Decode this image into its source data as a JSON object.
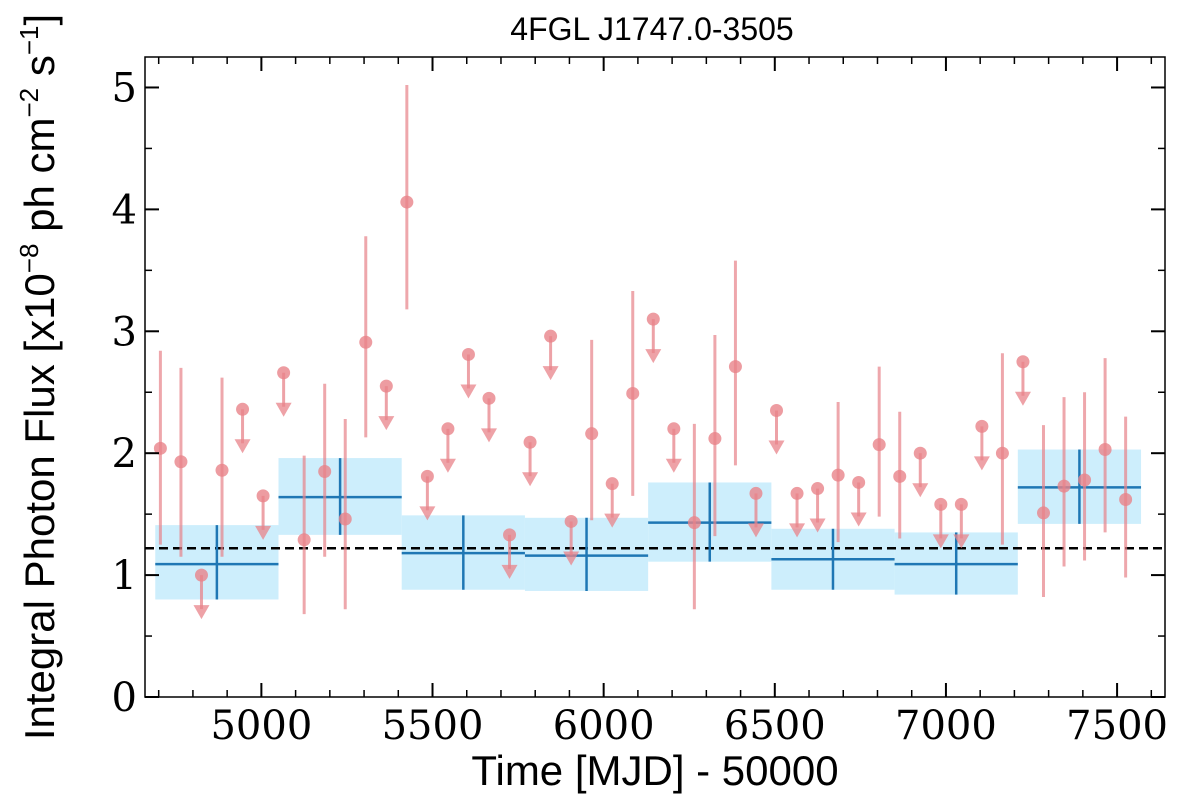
{
  "chart_data": {
    "type": "scatter",
    "title": "4FGL J1747.0-3505",
    "xlabel": "Time [MJD] - 50000",
    "ylabel": {
      "prefix": "Integral Photon Flux [x10",
      "exp1": "−8",
      "mid": " ph cm",
      "exp2": "−2",
      "mid2": " s",
      "exp3": "−1",
      "suffix": "]"
    },
    "xlim": [
      4660,
      7640
    ],
    "ylim": [
      0,
      5.25
    ],
    "x_ticks": [
      5000,
      5500,
      6000,
      6500,
      7000,
      7500
    ],
    "x_tick_labels": [
      "5000",
      "5500",
      "6000",
      "6500",
      "7000",
      "7500"
    ],
    "y_ticks": [
      0,
      1,
      2,
      3,
      4,
      5
    ],
    "y_tick_labels": [
      "0",
      "1",
      "2",
      "3",
      "4",
      "5"
    ],
    "mean_flux": 1.22,
    "colors": {
      "detection": "#e8838a",
      "bin_fill": "#cdeefc",
      "bin_line": "#1f77b4",
      "mean_line": "#000000"
    },
    "binned_series": [
      {
        "x_start": 4690,
        "x_end": 5050,
        "x_center": 4870,
        "y": 1.09,
        "y_lo": 0.8,
        "y_hi": 1.41
      },
      {
        "x_start": 5050,
        "x_end": 5410,
        "x_center": 5230,
        "y": 1.64,
        "y_lo": 1.33,
        "y_hi": 1.96
      },
      {
        "x_start": 5410,
        "x_end": 5770,
        "x_center": 5590,
        "y": 1.18,
        "y_lo": 0.88,
        "y_hi": 1.49
      },
      {
        "x_start": 5770,
        "x_end": 6130,
        "x_center": 5950,
        "y": 1.16,
        "y_lo": 0.87,
        "y_hi": 1.47
      },
      {
        "x_start": 6130,
        "x_end": 6490,
        "x_center": 6310,
        "y": 1.43,
        "y_lo": 1.11,
        "y_hi": 1.76
      },
      {
        "x_start": 6490,
        "x_end": 6850,
        "x_center": 6670,
        "y": 1.13,
        "y_lo": 0.88,
        "y_hi": 1.38
      },
      {
        "x_start": 6850,
        "x_end": 7210,
        "x_center": 7030,
        "y": 1.09,
        "y_lo": 0.84,
        "y_hi": 1.35
      },
      {
        "x_start": 7210,
        "x_end": 7570,
        "x_center": 7390,
        "y": 1.72,
        "y_lo": 1.42,
        "y_hi": 2.03
      }
    ],
    "detections": [
      {
        "x": 4705,
        "y": 2.04,
        "y_lo": 1.25,
        "y_hi": 2.84
      },
      {
        "x": 4765,
        "y": 1.93,
        "y_lo": 1.15,
        "y_hi": 2.7
      },
      {
        "x": 4885,
        "y": 1.86,
        "y_lo": 1.15,
        "y_hi": 2.62
      },
      {
        "x": 5125,
        "y": 1.29,
        "y_lo": 0.68,
        "y_hi": 1.98
      },
      {
        "x": 5185,
        "y": 1.85,
        "y_lo": 1.15,
        "y_hi": 2.57
      },
      {
        "x": 5245,
        "y": 1.46,
        "y_lo": 0.72,
        "y_hi": 2.28
      },
      {
        "x": 5305,
        "y": 2.91,
        "y_lo": 2.13,
        "y_hi": 3.78
      },
      {
        "x": 5425,
        "y": 4.06,
        "y_lo": 3.18,
        "y_hi": 5.02
      },
      {
        "x": 5965,
        "y": 2.16,
        "y_lo": 1.45,
        "y_hi": 2.93
      },
      {
        "x": 6085,
        "y": 2.49,
        "y_lo": 1.65,
        "y_hi": 3.33
      },
      {
        "x": 6265,
        "y": 1.43,
        "y_lo": 0.72,
        "y_hi": 2.24
      },
      {
        "x": 6325,
        "y": 2.12,
        "y_lo": 1.32,
        "y_hi": 2.97
      },
      {
        "x": 6385,
        "y": 2.71,
        "y_lo": 1.9,
        "y_hi": 3.58
      },
      {
        "x": 6685,
        "y": 1.82,
        "y_lo": 1.27,
        "y_hi": 2.42
      },
      {
        "x": 6805,
        "y": 2.07,
        "y_lo": 1.48,
        "y_hi": 2.71
      },
      {
        "x": 6865,
        "y": 1.81,
        "y_lo": 1.3,
        "y_hi": 2.34
      },
      {
        "x": 7165,
        "y": 2.0,
        "y_lo": 1.25,
        "y_hi": 2.82
      },
      {
        "x": 7285,
        "y": 1.51,
        "y_lo": 0.82,
        "y_hi": 2.23
      },
      {
        "x": 7345,
        "y": 1.73,
        "y_lo": 1.07,
        "y_hi": 2.46
      },
      {
        "x": 7405,
        "y": 1.78,
        "y_lo": 1.12,
        "y_hi": 2.5
      },
      {
        "x": 7465,
        "y": 2.03,
        "y_lo": 1.35,
        "y_hi": 2.78
      },
      {
        "x": 7525,
        "y": 1.62,
        "y_lo": 0.98,
        "y_hi": 2.3
      }
    ],
    "upper_limits": [
      {
        "x": 4825,
        "y": 1.0
      },
      {
        "x": 4945,
        "y": 2.36
      },
      {
        "x": 5005,
        "y": 1.65
      },
      {
        "x": 5065,
        "y": 2.66
      },
      {
        "x": 5365,
        "y": 2.55
      },
      {
        "x": 5485,
        "y": 1.81
      },
      {
        "x": 5545,
        "y": 2.2
      },
      {
        "x": 5605,
        "y": 2.81
      },
      {
        "x": 5665,
        "y": 2.45
      },
      {
        "x": 5725,
        "y": 1.33
      },
      {
        "x": 5785,
        "y": 2.09
      },
      {
        "x": 5845,
        "y": 2.96
      },
      {
        "x": 5905,
        "y": 1.44
      },
      {
        "x": 6025,
        "y": 1.75
      },
      {
        "x": 6145,
        "y": 3.1
      },
      {
        "x": 6205,
        "y": 2.2
      },
      {
        "x": 6445,
        "y": 1.67
      },
      {
        "x": 6505,
        "y": 2.35
      },
      {
        "x": 6565,
        "y": 1.67
      },
      {
        "x": 6625,
        "y": 1.71
      },
      {
        "x": 6745,
        "y": 1.76
      },
      {
        "x": 6925,
        "y": 2.0
      },
      {
        "x": 6985,
        "y": 1.58
      },
      {
        "x": 7045,
        "y": 1.58
      },
      {
        "x": 7105,
        "y": 2.22
      },
      {
        "x": 7225,
        "y": 2.75
      }
    ]
  }
}
